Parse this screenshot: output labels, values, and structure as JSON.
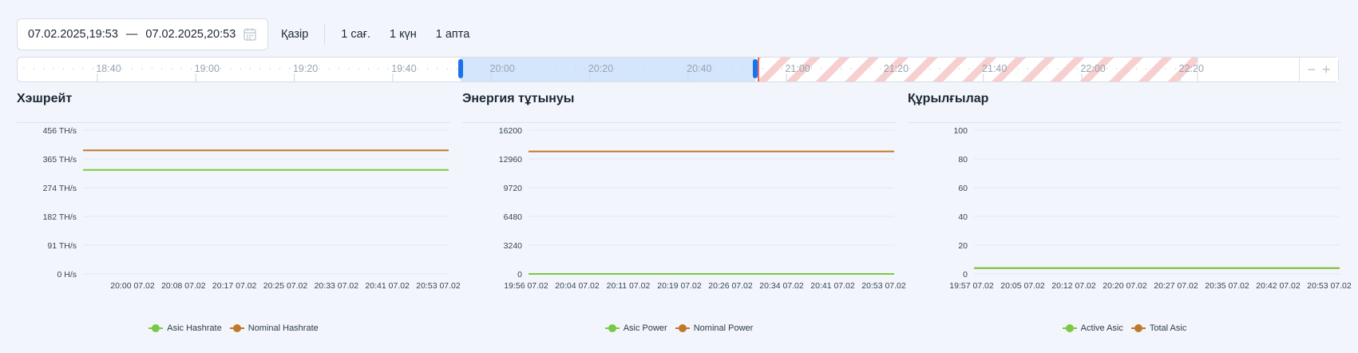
{
  "range": {
    "from": "07.02.2025,19:53",
    "to": "07.02.2025,20:53",
    "dash": "—"
  },
  "quick": {
    "now": "Қазір",
    "hour": "1 сағ.",
    "day": "1 күн",
    "week": "1 апта"
  },
  "timeline": {
    "labels": [
      "18:40",
      "19:00",
      "19:20",
      "19:40",
      "20:00",
      "20:20",
      "20:40",
      "21:00",
      "21:20",
      "21:40",
      "22:00",
      "22:20"
    ],
    "zoom_out": "−",
    "zoom_in": "+"
  },
  "colors": {
    "green": "#7ac943",
    "orange": "#c0782a",
    "selection": "#d4e6fb",
    "handle": "#1a73e8",
    "now_line": "#e53935",
    "future_stripe": "#f8cfcf"
  },
  "panels": [
    {
      "title": "Хэшрейт",
      "legend": [
        "Asic Hashrate",
        "Nominal Hashrate"
      ],
      "chart": "hashrate"
    },
    {
      "title": "Энергия тұтынуы",
      "legend": [
        "Asic Power",
        "Nominal Power"
      ],
      "chart": "power"
    },
    {
      "title": "Құрылғылар",
      "legend": [
        "Active Asic",
        "Total Asic"
      ],
      "chart": "devices"
    }
  ],
  "chart_data": [
    {
      "type": "line",
      "title": "Хэшрейт",
      "y_ticks": [
        "456 TH/s",
        "365 TH/s",
        "274 TH/s",
        "182 TH/s",
        "91 TH/s",
        "0 H/s"
      ],
      "ylim": [
        0,
        456
      ],
      "x": [
        "20:00 07.02",
        "20:08 07.02",
        "20:17 07.02",
        "20:25 07.02",
        "20:33 07.02",
        "20:41 07.02",
        "20:53 07.02"
      ],
      "series": [
        {
          "name": "Asic Hashrate",
          "color": "#7ac943",
          "values": [
            330,
            330,
            330,
            330,
            330,
            330,
            330
          ]
        },
        {
          "name": "Nominal Hashrate",
          "color": "#c0782a",
          "values": [
            392,
            392,
            392,
            392,
            392,
            392,
            392
          ]
        }
      ]
    },
    {
      "type": "line",
      "title": "Энергия тұтынуы",
      "y_ticks": [
        "16200",
        "12960",
        "9720",
        "6480",
        "3240",
        "0"
      ],
      "ylim": [
        0,
        16200
      ],
      "x": [
        "19:56 07.02",
        "20:04 07.02",
        "20:11 07.02",
        "20:19 07.02",
        "20:26 07.02",
        "20:34 07.02",
        "20:41 07.02",
        "20:53 07.02"
      ],
      "series": [
        {
          "name": "Asic Power",
          "color": "#7ac943",
          "values": [
            0,
            0,
            0,
            0,
            0,
            0,
            0,
            0
          ]
        },
        {
          "name": "Nominal Power",
          "color": "#c0782a",
          "values": [
            13800,
            13800,
            13800,
            13800,
            13800,
            13800,
            13800,
            13800
          ]
        }
      ]
    },
    {
      "type": "line",
      "title": "Құрылғылар",
      "y_ticks": [
        "100",
        "80",
        "60",
        "40",
        "20",
        "0"
      ],
      "ylim": [
        0,
        100
      ],
      "x": [
        "19:57 07.02",
        "20:05 07.02",
        "20:12 07.02",
        "20:20 07.02",
        "20:27 07.02",
        "20:35 07.02",
        "20:42 07.02",
        "20:53 07.02"
      ],
      "series": [
        {
          "name": "Active Asic",
          "color": "#7ac943",
          "values": [
            4,
            4,
            4,
            4,
            4,
            4,
            4,
            4
          ]
        },
        {
          "name": "Total Asic",
          "color": "#c0782a",
          "values": [
            4,
            4,
            4,
            4,
            4,
            4,
            4,
            4
          ]
        }
      ]
    }
  ]
}
